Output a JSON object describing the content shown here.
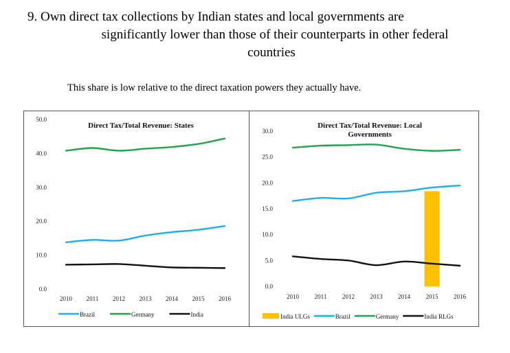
{
  "heading": {
    "line1": "9. Own direct tax collections by Indian states and local governments are",
    "line2": "significantly lower than those of their counterparts in other federal",
    "line3": "countries"
  },
  "subheading": "This share is low relative to the direct taxation powers they actually have.",
  "chart_data": [
    {
      "type": "line",
      "title": "Direct Tax/Total Revenue: States",
      "categories": [
        "2010",
        "2011",
        "2012",
        "2013",
        "2014",
        "2015",
        "2016"
      ],
      "ylim": [
        0,
        50
      ],
      "yticks": [
        "0.0",
        "10.0",
        "20.0",
        "30.0",
        "40.0",
        "50.0"
      ],
      "grid": false,
      "legend_position": "bottom",
      "series": [
        {
          "name": "Brazil",
          "color": "#1AAFEF",
          "values": [
            13.8,
            14.5,
            14.3,
            15.8,
            16.8,
            17.5,
            18.6
          ]
        },
        {
          "name": "Germany",
          "color": "#1FA548",
          "values": [
            40.8,
            41.6,
            40.8,
            41.4,
            41.9,
            42.8,
            44.4
          ]
        },
        {
          "name": "India",
          "color": "#111111",
          "values": [
            7.2,
            7.3,
            7.4,
            6.9,
            6.4,
            6.3,
            6.2
          ]
        }
      ]
    },
    {
      "type": "line",
      "title": "Direct Tax/Total Revenue: Local Governments",
      "title_line1": "Direct Tax/Total Revenue: Local",
      "title_line2": "Governments",
      "categories": [
        "2010",
        "2011",
        "2012",
        "2013",
        "2014",
        "2015",
        "2016"
      ],
      "ylim": [
        0,
        30
      ],
      "yticks": [
        "0.0",
        "5.0",
        "10.0",
        "15.0",
        "20.0",
        "25.0",
        "30.0"
      ],
      "grid": false,
      "legend_position": "bottom",
      "bars": {
        "name": "India ULGs",
        "color": "#FFC000",
        "values": [
          null,
          null,
          null,
          null,
          null,
          18.4,
          null
        ]
      },
      "series": [
        {
          "name": "Brazil",
          "color": "#1AAFEF",
          "values": [
            16.5,
            17.1,
            17.0,
            18.1,
            18.4,
            19.1,
            19.5
          ]
        },
        {
          "name": "Germany",
          "color": "#1FA548",
          "values": [
            26.8,
            27.2,
            27.3,
            27.4,
            26.6,
            26.2,
            26.4
          ]
        },
        {
          "name": "India RLGs",
          "color": "#111111",
          "values": [
            5.8,
            5.3,
            5.0,
            4.1,
            4.8,
            4.4,
            4.0
          ]
        }
      ]
    }
  ]
}
